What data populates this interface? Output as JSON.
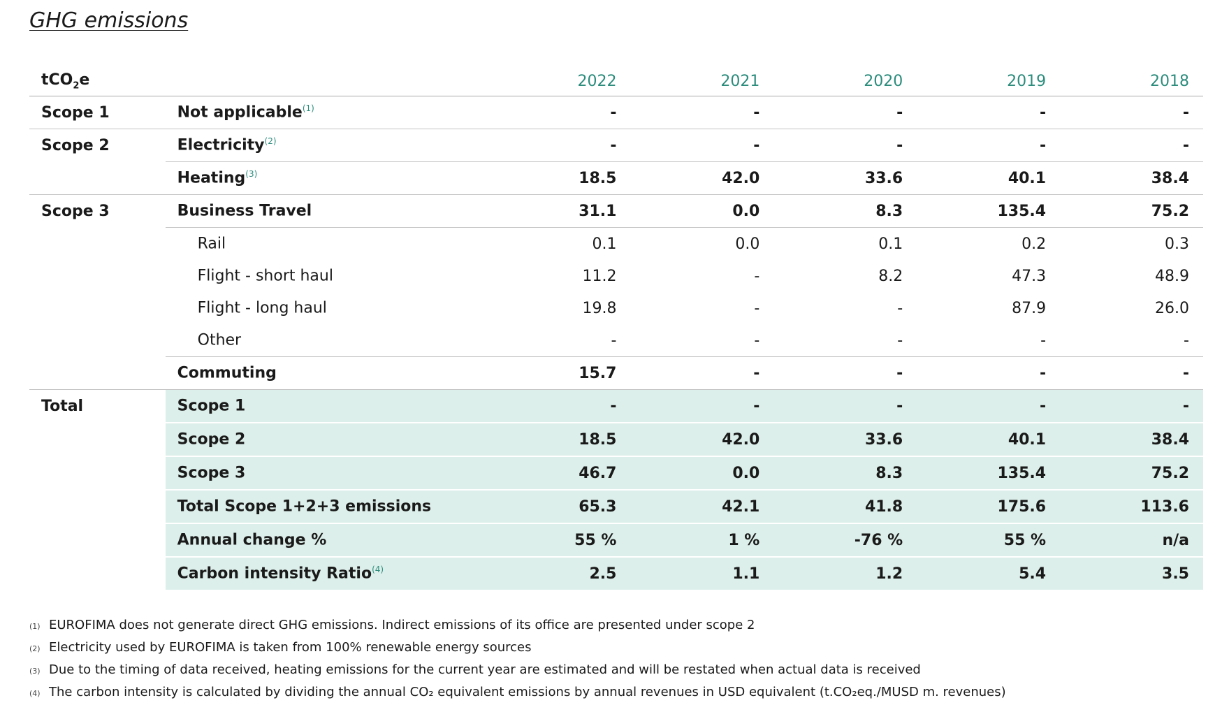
{
  "title": "GHG emissions",
  "table": {
    "unit_label": "tCO",
    "unit_sub": "2",
    "unit_suffix": "e",
    "years": [
      "2022",
      "2021",
      "2020",
      "2019",
      "2018"
    ],
    "rows": [
      {
        "category": "Scope 1",
        "label": "Not applicable",
        "fn": "(1)",
        "values": [
          "-",
          "-",
          "-",
          "-",
          "-"
        ]
      },
      {
        "category": "Scope 2",
        "label": "Electricity",
        "fn": "(2)",
        "values": [
          "-",
          "-",
          "-",
          "-",
          "-"
        ]
      },
      {
        "category": "",
        "label": "Heating",
        "fn": "(3)",
        "values": [
          "18.5",
          "42.0",
          "33.6",
          "40.1",
          "38.4"
        ]
      },
      {
        "category": "Scope 3",
        "label": "Business Travel",
        "fn": "",
        "values": [
          "31.1",
          "0.0",
          "8.3",
          "135.4",
          "75.2"
        ]
      },
      {
        "category": "",
        "label": "Rail",
        "fn": "",
        "values": [
          "0.1",
          "0.0",
          "0.1",
          "0.2",
          "0.3"
        ]
      },
      {
        "category": "",
        "label": "Flight - short haul",
        "fn": "",
        "values": [
          "11.2",
          "-",
          "8.2",
          "47.3",
          "48.9"
        ]
      },
      {
        "category": "",
        "label": "Flight - long haul",
        "fn": "",
        "values": [
          "19.8",
          "-",
          "-",
          "87.9",
          "26.0"
        ]
      },
      {
        "category": "",
        "label": "Other",
        "fn": "",
        "values": [
          "-",
          "-",
          "-",
          "-",
          "-"
        ]
      },
      {
        "category": "",
        "label": "Commuting",
        "fn": "",
        "values": [
          "15.7",
          "-",
          "-",
          "-",
          "-"
        ]
      }
    ],
    "totals": [
      {
        "category": "Total",
        "label": "Scope 1",
        "fn": "",
        "values": [
          "-",
          "-",
          "-",
          "-",
          "-"
        ]
      },
      {
        "category": "",
        "label": "Scope 2",
        "fn": "",
        "values": [
          "18.5",
          "42.0",
          "33.6",
          "40.1",
          "38.4"
        ]
      },
      {
        "category": "",
        "label": "Scope 3",
        "fn": "",
        "values": [
          "46.7",
          "0.0",
          "8.3",
          "135.4",
          "75.2"
        ]
      },
      {
        "category": "",
        "label": "Total Scope 1+2+3 emissions",
        "fn": "",
        "values": [
          "65.3",
          "42.1",
          "41.8",
          "175.6",
          "113.6"
        ]
      },
      {
        "category": "",
        "label": "Annual change %",
        "fn": "",
        "values": [
          "55 %",
          "1 %",
          "-76 %",
          "55 %",
          "n/a"
        ]
      },
      {
        "category": "",
        "label": "Carbon intensity Ratio",
        "fn": "(4)",
        "values": [
          "2.5",
          "1.1",
          "1.2",
          "5.4",
          "3.5"
        ]
      }
    ]
  },
  "footnotes": [
    {
      "mark": "(1)",
      "text": "EUROFIMA does not generate direct GHG emissions. Indirect emissions of its office are presented under scope 2"
    },
    {
      "mark": "(2)",
      "text": "Electricity used by EUROFIMA is  taken from 100% renewable energy sources"
    },
    {
      "mark": "(3)",
      "text": "Due to the timing of data received, heating emissions for the current year are estimated and will be restated when actual data is received"
    },
    {
      "mark": "(4)",
      "text": "The carbon intensity is calculated by dividing the annual CO₂ equivalent emissions by annual revenues in USD equivalent (t.CO₂eq./MUSD m. revenues)"
    }
  ],
  "colors": {
    "accent": "#2c8c7c",
    "total_bg": "#dcefea",
    "rule": "#c4c4c4"
  }
}
